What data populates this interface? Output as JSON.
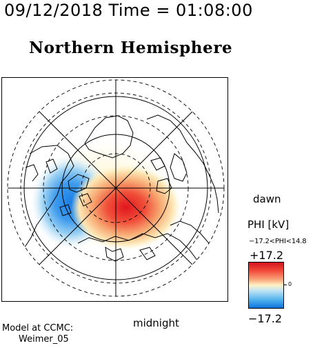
{
  "header": {
    "datetime_text": "09/12/2018 Time = 01:08:00",
    "title": "Northern Hemisphere"
  },
  "map": {
    "orientation": {
      "right_label": "dawn",
      "bottom_label": "midnight"
    },
    "colors": {
      "negative": "#1a7fe6",
      "positive": "#e2161e",
      "neutral": "#fff6d2",
      "grid": "#000000"
    },
    "phi_features": [
      {
        "sign": "negative",
        "description_color": "blue"
      },
      {
        "sign": "positive",
        "description_color": "red"
      }
    ]
  },
  "colorbar": {
    "title": "PHI [kV]",
    "range_text": "−17.2<PHI<14.8",
    "max_label": "+17.2",
    "zero_label": "0",
    "min_label": "−17.2",
    "min": -17.2,
    "max": 17.2,
    "phi_min": -17.2,
    "phi_max": 14.8
  },
  "footer": {
    "model_line1": "Model at CCMC:",
    "model_line2": "Weimer_05"
  }
}
